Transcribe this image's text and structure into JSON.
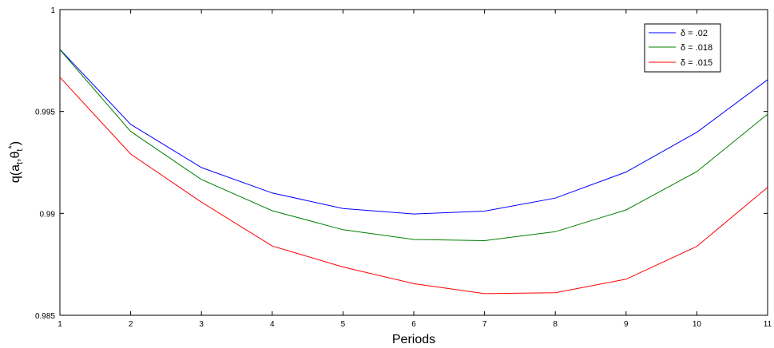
{
  "chart_data": {
    "type": "line",
    "title": "",
    "xlabel": "Periods",
    "ylabel_main": "q(a",
    "ylabel_sub1": "t",
    "ylabel_mid": ",θ",
    "ylabel_sub2": "t",
    "ylabel_sup": "*",
    "ylabel_end": ")",
    "x": [
      1,
      2,
      3,
      4,
      5,
      6,
      7,
      8,
      9,
      10,
      11
    ],
    "xlim": [
      1,
      11
    ],
    "ylim": [
      0.985,
      1
    ],
    "xticks": [
      1,
      2,
      3,
      4,
      5,
      6,
      7,
      8,
      9,
      10,
      11
    ],
    "xtick_labels": [
      "1",
      "2",
      "3",
      "4",
      "5",
      "6",
      "7",
      "8",
      "9",
      "10",
      "11"
    ],
    "yticks": [
      0.985,
      0.99,
      0.995,
      1
    ],
    "ytick_labels": [
      "0.985",
      "0.99",
      "0.995",
      "1"
    ],
    "grid": false,
    "legend_position": "top-right",
    "series": [
      {
        "name": "δ = .02",
        "color": "#0000ff",
        "values": [
          0.99805,
          0.99437,
          0.99225,
          0.991,
          0.99024,
          0.98997,
          0.99011,
          0.99075,
          0.99203,
          0.99398,
          0.99656
        ]
      },
      {
        "name": "δ = .018",
        "color": "#008000",
        "values": [
          0.99803,
          0.99402,
          0.99166,
          0.99013,
          0.9892,
          0.98872,
          0.98866,
          0.9891,
          0.99017,
          0.99205,
          0.99487
        ]
      },
      {
        "name": "δ = .015",
        "color": "#ff0000",
        "values": [
          0.99668,
          0.99291,
          0.99055,
          0.9884,
          0.98737,
          0.98655,
          0.98606,
          0.98611,
          0.98677,
          0.98838,
          0.99128
        ]
      }
    ]
  }
}
